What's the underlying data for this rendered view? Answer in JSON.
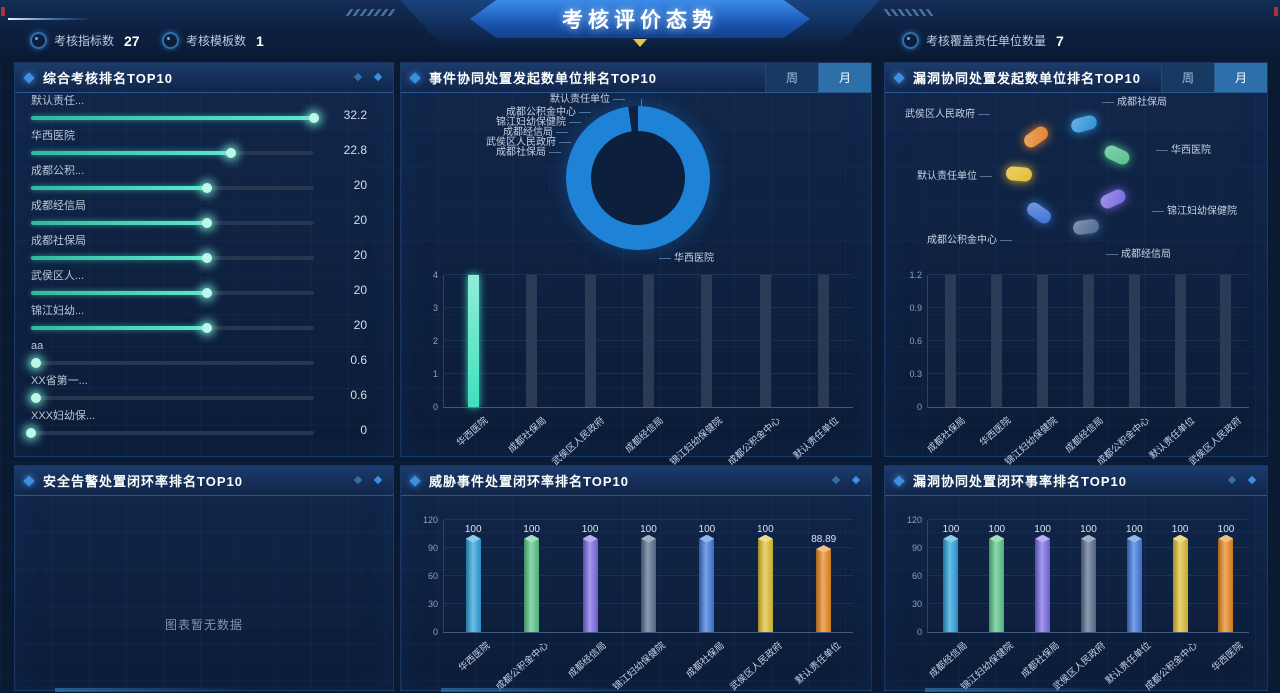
{
  "header": {
    "title": "考核评价态势",
    "stats": [
      {
        "label": "考核指标数",
        "value": "27"
      },
      {
        "label": "考核模板数",
        "value": "1"
      },
      {
        "label": "考核覆盖责任单位数量",
        "value": "7"
      }
    ]
  },
  "toggle": {
    "week": "周",
    "month": "月",
    "active": "月"
  },
  "colors": {
    "accent_blue": "#2d6fa8",
    "teal": "#4ae0c2",
    "donut_blue": "#1e82d6"
  },
  "panels": {
    "overall": {
      "title": "综合考核排名TOP10"
    },
    "event": {
      "title": "事件协同处置发起数单位排名TOP10"
    },
    "vuln": {
      "title": "漏洞协同处置发起数单位排名TOP10"
    },
    "alarm": {
      "title": "安全告警处置闭环率排名TOP10",
      "empty_text": "图表暂无数据"
    },
    "threat": {
      "title": "威胁事件处置闭环率排名TOP10"
    },
    "vuln_close": {
      "title": "漏洞协同处置闭环事率排名TOP10"
    }
  },
  "chart_data": [
    {
      "id": "overall_hbar",
      "type": "bar",
      "orientation": "horizontal",
      "title": "综合考核排名TOP10",
      "categories": [
        "默认责任...",
        "华西医院",
        "成都公积...",
        "成都经信局",
        "成都社保局",
        "武侯区人...",
        "锦江妇幼...",
        "aa",
        "XX省第一...",
        "XXX妇幼保..."
      ],
      "values": [
        32.2,
        22.8,
        20,
        20,
        20,
        20,
        20,
        0.6,
        0.6,
        0
      ],
      "xlim": [
        0,
        32.2
      ],
      "bar_color": "#4ae0c2"
    },
    {
      "id": "event_donut",
      "type": "pie",
      "title": "事件协同处置发起数单位排名TOP10",
      "items": [
        {
          "label": "华西医院",
          "value": 4,
          "color": "#1e82d6"
        },
        {
          "label": "默认责任单位",
          "value": 0
        },
        {
          "label": "成都公积金中心",
          "value": 0
        },
        {
          "label": "锦江妇幼保健院",
          "value": 0
        },
        {
          "label": "成都经信局",
          "value": 0
        },
        {
          "label": "武侯区人民政府",
          "value": 0
        },
        {
          "label": "成都社保局",
          "value": 0
        }
      ]
    },
    {
      "id": "event_bar",
      "type": "bar",
      "categories": [
        "华西医院",
        "成都社保局",
        "武侯区人民政府",
        "成都经信局",
        "锦江妇幼保健院",
        "成都公积金中心",
        "默认责任单位"
      ],
      "values": [
        4,
        0,
        0,
        0,
        0,
        0,
        0
      ],
      "ylim": [
        0,
        4
      ],
      "yticks": [
        0,
        1,
        2,
        3,
        4
      ],
      "bar_color": "#3fe0bd",
      "track": true
    },
    {
      "id": "vuln_scatter",
      "type": "scatter",
      "title": "漏洞协同处置发起数单位排名TOP10",
      "points": [
        {
          "label": "成都社保局",
          "color": "#2b90d9"
        },
        {
          "label": "华西医院",
          "color": "#55c08b"
        },
        {
          "label": "锦江妇幼保健院",
          "color": "#7769de"
        },
        {
          "label": "成都经信局",
          "color": "#4c6a92"
        },
        {
          "label": "成都公积金中心",
          "color": "#3b70d2"
        },
        {
          "label": "默认责任单位",
          "color": "#e2bd31"
        },
        {
          "label": "武侯区人民政府",
          "color": "#e2812a"
        }
      ]
    },
    {
      "id": "vuln_bar",
      "type": "bar",
      "categories": [
        "成都社保局",
        "华西医院",
        "锦江妇幼保健院",
        "成都经信局",
        "成都公积金中心",
        "默认责任单位",
        "武侯区人民政府"
      ],
      "values": [
        0,
        0,
        0,
        0,
        0,
        0,
        0
      ],
      "ylim": [
        0,
        1.2
      ],
      "yticks": [
        0,
        0.3,
        0.6,
        0.9,
        1.2
      ],
      "track": true
    },
    {
      "id": "threat_bar",
      "type": "bar",
      "categories": [
        "华西医院",
        "成都公积金中心",
        "成都经信局",
        "锦江妇幼保健院",
        "成都社保局",
        "武侯区人民政府",
        "默认责任单位"
      ],
      "values": [
        100,
        100,
        100,
        100,
        100,
        100,
        88.89
      ],
      "ylim": [
        0,
        120
      ],
      "yticks": [
        0,
        30,
        60,
        90,
        120
      ],
      "show_values": true,
      "bar_colors": [
        "#2ba2dc",
        "#5cc789",
        "#7a6ce6",
        "#5a7190",
        "#3e78e0",
        "#e0c233",
        "#e8891f"
      ]
    },
    {
      "id": "vuln_close_bar",
      "type": "bar",
      "categories": [
        "成都经信局",
        "锦江妇幼保健院",
        "成都社保局",
        "武侯区人民政府",
        "默认责任单位",
        "成都公积金中心",
        "华西医院"
      ],
      "values": [
        100,
        100,
        100,
        100,
        100,
        100,
        100
      ],
      "ylim": [
        0,
        120
      ],
      "yticks": [
        0,
        30,
        60,
        90,
        120
      ],
      "show_values": true,
      "bar_colors": [
        "#2ba2dc",
        "#5cc789",
        "#7a6ce6",
        "#5a7190",
        "#3e78e0",
        "#e0c233",
        "#e8891f"
      ]
    }
  ]
}
